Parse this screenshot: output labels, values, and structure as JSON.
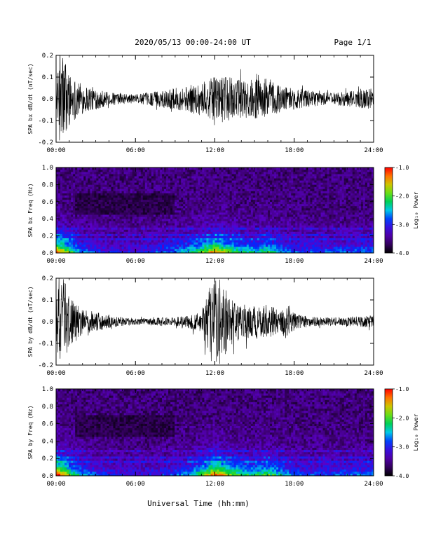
{
  "header": {
    "date_range": "2020/05/13  00:00-24:00 UT",
    "page": "Page 1/1"
  },
  "footer": {
    "xlabel": "Universal Time (hh:mm)"
  },
  "chart_data": [
    {
      "type": "line",
      "ylabel": "SPA bx dB/dt (nT/sec)",
      "xlim": [
        0,
        24
      ],
      "ylim": [
        -0.2,
        0.2
      ],
      "x_ticks": [
        "00:00",
        "06:00",
        "12:00",
        "18:00",
        "24:00"
      ],
      "y_ticks": [
        "-0.2",
        "-0.1",
        "0.0",
        "0.1",
        "0.2"
      ],
      "series": [
        {
          "x_hours": [
            0,
            0.3,
            0.6,
            1.0,
            1.5,
            2,
            2.5,
            3,
            4,
            5,
            6,
            7,
            8,
            9,
            10,
            11,
            12,
            13,
            14,
            15,
            16,
            17,
            18,
            19,
            20,
            21,
            22,
            23,
            24
          ],
          "amplitude": [
            0.04,
            0.22,
            0.22,
            0.12,
            0.09,
            0.07,
            0.06,
            0.05,
            0.03,
            0.025,
            0.02,
            0.03,
            0.04,
            0.05,
            0.06,
            0.08,
            0.1,
            0.1,
            0.09,
            0.09,
            0.1,
            0.06,
            0.05,
            0.04,
            0.03,
            0.03,
            0.035,
            0.04,
            0.05
          ]
        }
      ]
    },
    {
      "type": "heatmap",
      "ylabel": "SPA bx Freq (Hz)",
      "xlim": [
        0,
        24
      ],
      "ylim": [
        0,
        1
      ],
      "x_ticks": [
        "00:00",
        "06:00",
        "12:00",
        "18:00",
        "24:00"
      ],
      "y_ticks": [
        "0.0",
        "0.2",
        "0.4",
        "0.6",
        "0.8",
        "1.0"
      ],
      "colorbar": {
        "label": "Log₁₀ Power",
        "ticks": [
          "-1.0",
          "-2.0",
          "-3.0",
          "-4.0"
        ],
        "range": [
          -4,
          -1
        ]
      },
      "activity_hours": [
        0,
        0.5,
        1,
        2,
        3,
        4,
        5,
        6,
        7,
        8,
        9,
        10,
        11,
        12,
        13,
        14,
        15,
        16,
        17,
        18,
        19,
        20,
        21,
        22,
        23,
        24
      ],
      "activity": [
        0.9,
        0.8,
        0.6,
        0.35,
        0.25,
        0.2,
        0.2,
        0.2,
        0.25,
        0.3,
        0.35,
        0.45,
        0.6,
        0.85,
        0.65,
        0.5,
        0.45,
        0.55,
        0.4,
        0.3,
        0.3,
        0.28,
        0.3,
        0.3,
        0.32,
        0.35
      ]
    },
    {
      "type": "line",
      "ylabel": "SPA by dB/dt (nT/sec)",
      "xlim": [
        0,
        24
      ],
      "ylim": [
        -0.2,
        0.2
      ],
      "x_ticks": [
        "00:00",
        "06:00",
        "12:00",
        "18:00",
        "24:00"
      ],
      "y_ticks": [
        "-0.2",
        "-0.1",
        "0.0",
        "0.1",
        "0.2"
      ],
      "series": [
        {
          "x_hours": [
            0,
            0.3,
            0.6,
            1.0,
            1.5,
            2,
            3,
            4,
            5,
            6,
            7,
            8,
            9,
            10,
            11,
            11.5,
            12,
            12.5,
            13,
            14,
            15,
            16,
            17,
            17.5,
            18,
            19,
            20,
            21,
            22,
            23,
            24
          ],
          "amplitude": [
            0.08,
            0.22,
            0.2,
            0.12,
            0.08,
            0.06,
            0.045,
            0.03,
            0.02,
            0.015,
            0.015,
            0.02,
            0.02,
            0.03,
            0.05,
            0.15,
            0.22,
            0.2,
            0.12,
            0.08,
            0.08,
            0.08,
            0.05,
            0.1,
            0.04,
            0.025,
            0.02,
            0.02,
            0.02,
            0.025,
            0.03
          ]
        }
      ]
    },
    {
      "type": "heatmap",
      "ylabel": "SPA by Freq (Hz)",
      "xlim": [
        0,
        24
      ],
      "ylim": [
        0,
        1
      ],
      "x_ticks": [
        "00:00",
        "06:00",
        "12:00",
        "18:00",
        "24:00"
      ],
      "y_ticks": [
        "0.0",
        "0.2",
        "0.4",
        "0.6",
        "0.8",
        "1.0"
      ],
      "colorbar": {
        "label": "Log₁₀ Power",
        "ticks": [
          "-1.0",
          "-2.0",
          "-3.0",
          "-4.0"
        ],
        "range": [
          -4,
          -1
        ]
      },
      "activity_hours": [
        0,
        0.5,
        1,
        2,
        3,
        4,
        5,
        6,
        7,
        8,
        9,
        10,
        11,
        12,
        13,
        14,
        15,
        16,
        17,
        18,
        19,
        20,
        21,
        22,
        23,
        24
      ],
      "activity": [
        0.95,
        0.85,
        0.65,
        0.4,
        0.3,
        0.25,
        0.2,
        0.2,
        0.2,
        0.25,
        0.3,
        0.4,
        0.6,
        0.9,
        0.7,
        0.55,
        0.5,
        0.6,
        0.45,
        0.3,
        0.28,
        0.28,
        0.3,
        0.3,
        0.3,
        0.35
      ]
    }
  ]
}
